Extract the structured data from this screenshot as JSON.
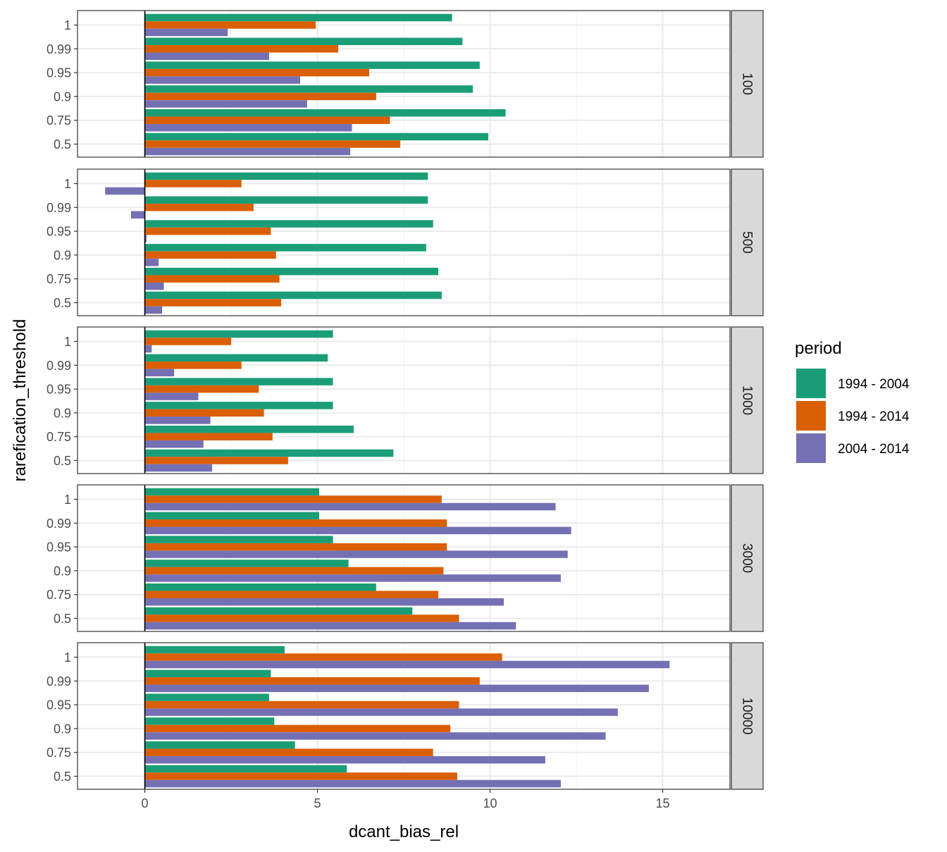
{
  "chart_data": {
    "type": "bar",
    "orientation": "horizontal",
    "facet_by": "rows",
    "xlabel": "dcant_bias_rel",
    "ylabel": "rarefication_threshold",
    "xlim": [
      -1.95,
      16.95
    ],
    "x_ticks": [
      0,
      5,
      10,
      15
    ],
    "grid": true,
    "legend": {
      "title": "period",
      "placement": "right"
    },
    "categories": [
      "1",
      "0.99",
      "0.95",
      "0.9",
      "0.75",
      "0.5"
    ],
    "series_meta": [
      {
        "name": "1994 - 2004",
        "color": "#1b9e77"
      },
      {
        "name": "1994 - 2014",
        "color": "#d95f02"
      },
      {
        "name": "2004 - 2014",
        "color": "#7570b3"
      }
    ],
    "panels": [
      {
        "strip": "100",
        "series": [
          {
            "name": "1994 - 2004",
            "values": [
              8.9,
              9.2,
              9.7,
              9.5,
              10.45,
              9.95
            ]
          },
          {
            "name": "1994 - 2014",
            "values": [
              4.95,
              5.6,
              6.5,
              6.7,
              7.1,
              7.4
            ]
          },
          {
            "name": "2004 - 2014",
            "values": [
              2.4,
              3.6,
              4.5,
              4.7,
              6.0,
              5.95
            ]
          }
        ]
      },
      {
        "strip": "500",
        "series": [
          {
            "name": "1994 - 2004",
            "values": [
              8.2,
              8.2,
              8.35,
              8.15,
              8.5,
              8.6
            ]
          },
          {
            "name": "1994 - 2014",
            "values": [
              2.8,
              3.15,
              3.65,
              3.8,
              3.9,
              3.95
            ]
          },
          {
            "name": "2004 - 2014",
            "values": [
              -1.15,
              -0.4,
              0.05,
              0.4,
              0.55,
              0.5
            ]
          }
        ]
      },
      {
        "strip": "1000",
        "series": [
          {
            "name": "1994 - 2004",
            "values": [
              5.45,
              5.3,
              5.45,
              5.45,
              6.05,
              7.2
            ]
          },
          {
            "name": "1994 - 2014",
            "values": [
              2.5,
              2.8,
              3.3,
              3.45,
              3.7,
              4.15
            ]
          },
          {
            "name": "2004 - 2014",
            "values": [
              0.2,
              0.85,
              1.55,
              1.9,
              1.7,
              1.95
            ]
          }
        ]
      },
      {
        "strip": "3000",
        "series": [
          {
            "name": "1994 - 2004",
            "values": [
              5.05,
              5.05,
              5.45,
              5.9,
              6.7,
              7.75
            ]
          },
          {
            "name": "1994 - 2014",
            "values": [
              8.6,
              8.75,
              8.75,
              8.65,
              8.5,
              9.1
            ]
          },
          {
            "name": "2004 - 2014",
            "values": [
              11.9,
              12.35,
              12.25,
              12.05,
              10.4,
              10.75
            ]
          }
        ]
      },
      {
        "strip": "10000",
        "series": [
          {
            "name": "1994 - 2004",
            "values": [
              4.05,
              3.65,
              3.6,
              3.75,
              4.35,
              5.85
            ]
          },
          {
            "name": "1994 - 2014",
            "values": [
              10.35,
              9.7,
              9.1,
              8.85,
              8.35,
              9.05
            ]
          },
          {
            "name": "2004 - 2014",
            "values": [
              15.2,
              14.6,
              13.7,
              13.35,
              11.6,
              12.05
            ]
          }
        ]
      }
    ]
  }
}
